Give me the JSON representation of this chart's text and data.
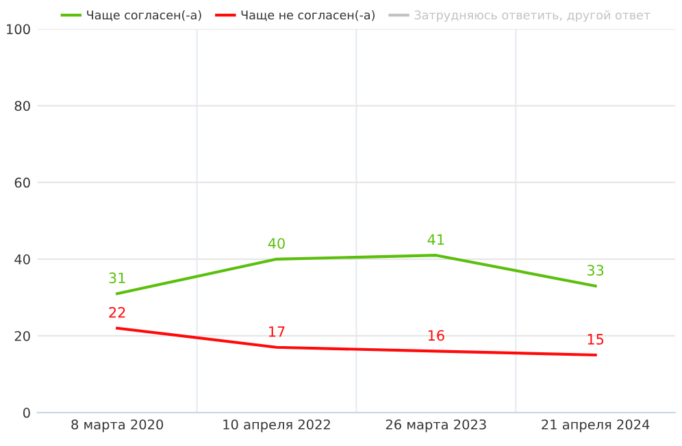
{
  "chart_data": {
    "type": "line",
    "categories": [
      "8 марта 2020",
      "10 апреля 2022",
      "26 марта 2023",
      "21 апреля 2024"
    ],
    "series": [
      {
        "name": "Чаще согласен(-а)",
        "color": "#5bbf0c",
        "values": [
          31,
          40,
          41,
          33
        ]
      },
      {
        "name": "Чаще не согласен(-а)",
        "color": "#ff0a0a",
        "values": [
          22,
          17,
          16,
          15
        ]
      },
      {
        "name": "Затрудняюсь ответить, другой ответ",
        "color": "#c2c2c2",
        "values": [
          null,
          null,
          null,
          null
        ]
      }
    ],
    "ylim": [
      0,
      100
    ],
    "yticks": [
      0,
      20,
      40,
      60,
      80,
      100
    ],
    "grid": true,
    "legend": "top",
    "data_labels": true,
    "marker": "none",
    "line_style": "solid"
  }
}
